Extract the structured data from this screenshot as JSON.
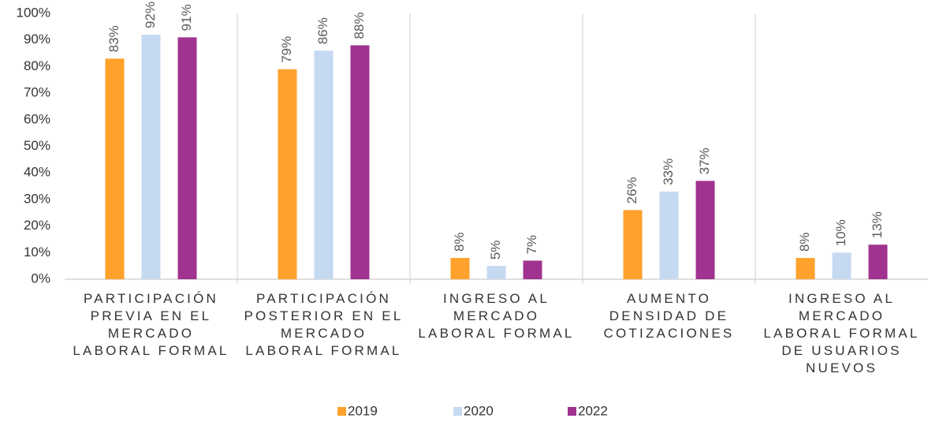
{
  "chart_data": {
    "type": "bar",
    "categories": [
      "PARTICIPACIÓN PREVIA EN EL MERCADO LABORAL FORMAL",
      "PARTICIPACIÓN POSTERIOR EN EL MERCADO LABORAL FORMAL",
      "INGRESO AL MERCADO LABORAL FORMAL",
      "AUMENTO DENSIDAD DE COTIZACIONES",
      "INGRESO AL MERCADO LABORAL FORMAL DE USUARIOS NUEVOS"
    ],
    "series": [
      {
        "name": "2019",
        "color": "#ffa12b",
        "values": [
          83,
          79,
          8,
          26,
          8
        ],
        "value_labels": [
          "83%",
          "79%",
          "8%",
          "26%",
          "8%"
        ]
      },
      {
        "name": "2020",
        "color": "#c5d9f1",
        "values": [
          92,
          86,
          5,
          33,
          10
        ],
        "value_labels": [
          "92%",
          "86%",
          "5%",
          "33%",
          "10%"
        ]
      },
      {
        "name": "2022",
        "color": "#a0338f",
        "values": [
          91,
          88,
          7,
          37,
          13
        ],
        "value_labels": [
          "91%",
          "88%",
          "7%",
          "37%",
          "13%"
        ]
      }
    ],
    "ylim": [
      0,
      100
    ],
    "yticks": [
      {
        "value": 0,
        "label": "0%"
      },
      {
        "value": 10,
        "label": "10%"
      },
      {
        "value": 20,
        "label": "20%"
      },
      {
        "value": 30,
        "label": "30%"
      },
      {
        "value": 40,
        "label": "40%"
      },
      {
        "value": 50,
        "label": "50%"
      },
      {
        "value": 60,
        "label": "60%"
      },
      {
        "value": 70,
        "label": "70%"
      },
      {
        "value": 80,
        "label": "80%"
      },
      {
        "value": 90,
        "label": "90%"
      },
      {
        "value": 100,
        "label": "100%"
      }
    ],
    "grid": false,
    "legend": "bottom"
  }
}
